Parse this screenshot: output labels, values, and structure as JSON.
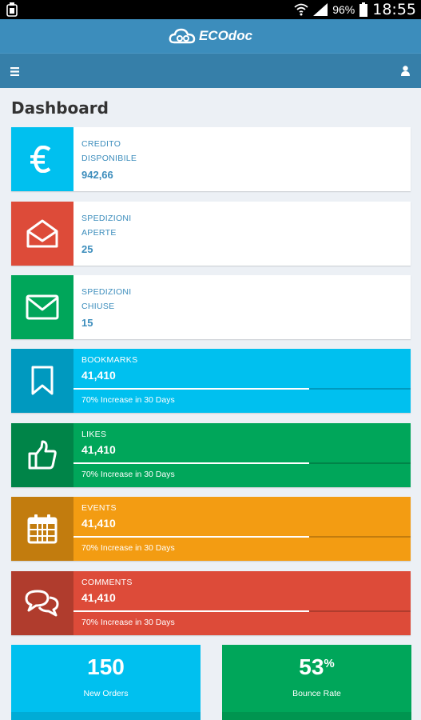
{
  "status_bar": {
    "battery": "96%",
    "time": "18:55"
  },
  "app": {
    "title": "ECOdoc"
  },
  "page": {
    "title": "Dashboard"
  },
  "info_boxes": [
    {
      "label_line1": "CREDITO",
      "label_line2": "DISPONIBILE",
      "value": "942,66",
      "color": "#00c0ef",
      "icon": "euro-icon"
    },
    {
      "label_line1": "SPEDIZIONI",
      "label_line2": "APERTE",
      "value": "25",
      "color": "#dd4b39",
      "icon": "open-envelope-icon"
    },
    {
      "label_line1": "SPEDIZIONI",
      "label_line2": "CHIUSE",
      "value": "15",
      "color": "#00a65a",
      "icon": "envelope-icon"
    }
  ],
  "progress_boxes": [
    {
      "label": "BOOKMARKS",
      "value": "41,410",
      "progress": 0.7,
      "description": "70% Increase in 30 Days",
      "color": "#00c0ef",
      "icon": "bookmark-icon"
    },
    {
      "label": "LIKES",
      "value": "41,410",
      "progress": 0.7,
      "description": "70% Increase in 30 Days",
      "color": "#00a65a",
      "icon": "thumbs-up-icon"
    },
    {
      "label": "EVENTS",
      "value": "41,410",
      "progress": 0.7,
      "description": "70% Increase in 30 Days",
      "color": "#f39c12",
      "icon": "calendar-icon"
    },
    {
      "label": "COMMENTS",
      "value": "41,410",
      "progress": 0.7,
      "description": "70% Increase in 30 Days",
      "color": "#dd4b39",
      "icon": "comments-icon"
    }
  ],
  "small_boxes": [
    {
      "value": "150",
      "suffix": "",
      "label": "New Orders",
      "color": "#00c0ef"
    },
    {
      "value": "53",
      "suffix": "%",
      "label": "Bounce Rate",
      "color": "#00a65a"
    }
  ]
}
